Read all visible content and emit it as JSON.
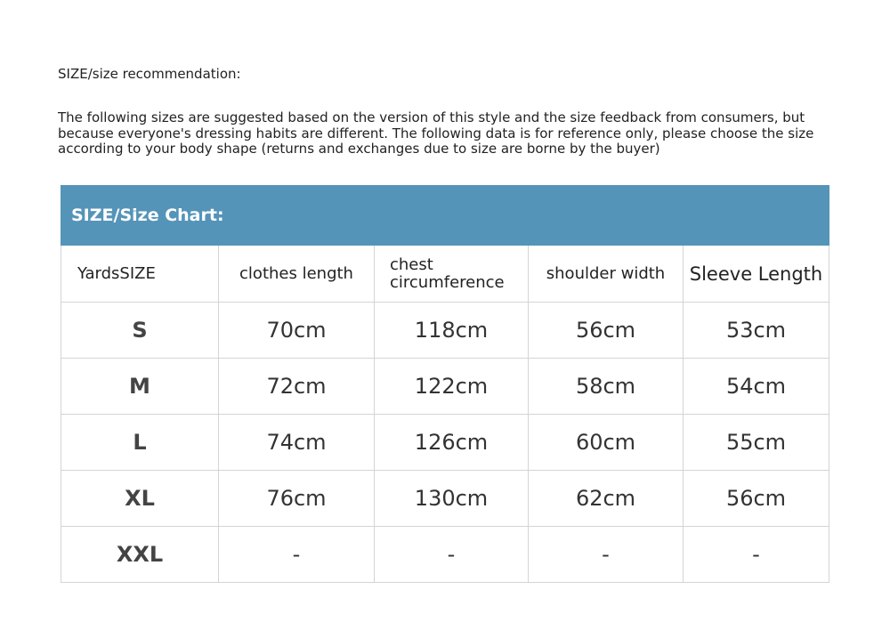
{
  "title": "SIZE/size recommendation:",
  "description": "The following sizes are suggested based on the version of this style and the size feedback from consumers, but because everyone's dressing habits are different. The following data is for reference only, please choose the size according to your body shape (returns and exchanges due to size are borne by the buyer)",
  "table": {
    "caption": "SIZE/Size Chart:",
    "header_color": "#5594b9",
    "columns": [
      "YardsSIZE",
      "clothes length",
      "chest circumference",
      "shoulder width",
      "Sleeve Length"
    ],
    "rows": [
      [
        "S",
        "70cm",
        "118cm",
        "56cm",
        "53cm"
      ],
      [
        "M",
        "72cm",
        "122cm",
        "58cm",
        "54cm"
      ],
      [
        "L",
        "74cm",
        "126cm",
        "60cm",
        "55cm"
      ],
      [
        "XL",
        "76cm",
        "130cm",
        "62cm",
        "56cm"
      ],
      [
        "XXL",
        "-",
        "-",
        "-",
        "-"
      ]
    ]
  }
}
